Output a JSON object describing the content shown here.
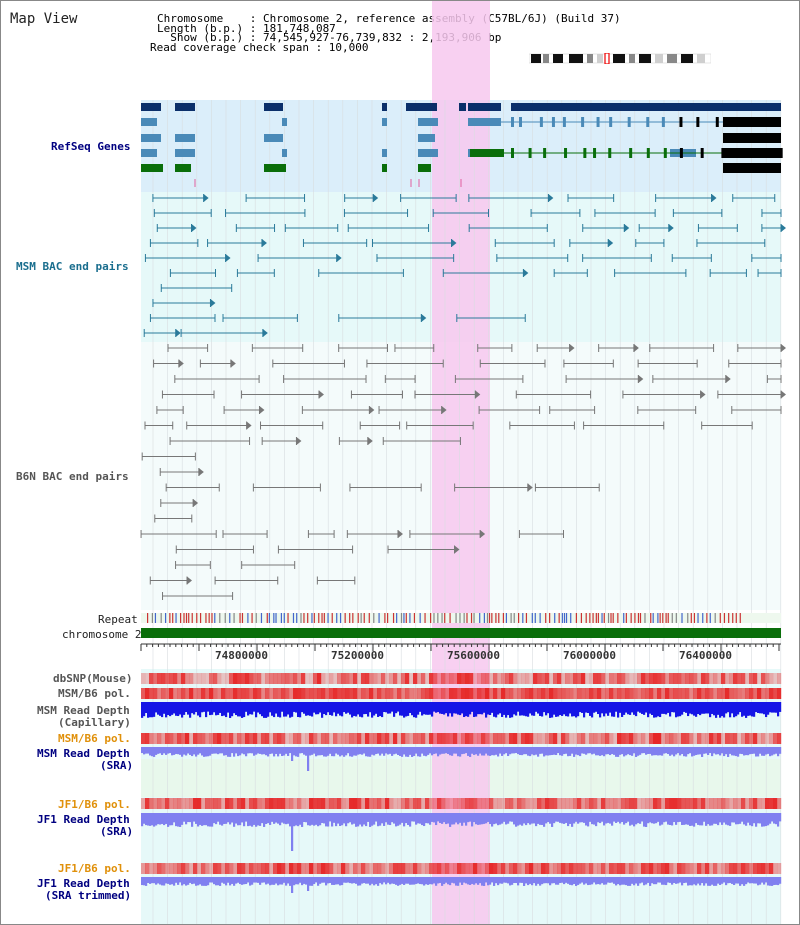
{
  "header": {
    "title": "Map View",
    "info_lines": [
      "Chromosome    : Chromosome 2, reference assembly (C57BL/6J) (Build 37)",
      "Length (b.p.) : 181,748,087",
      "  Show (b.p.) : 74,545,927-76,739,832 : 2,193,906 bp",
      "Read coverage check span : 10,000"
    ]
  },
  "tracks": {
    "refseq": "RefSeq Genes",
    "msm_bac": "MSM BAC end pairs",
    "b6n_bac": "B6N BAC end pairs",
    "repeat": "Repeat",
    "chromosome": "chromosome 2",
    "dbsnp": "dbSNP(Mouse)",
    "msm_b6_pol": "MSM/B6 pol.",
    "msm_depth_cap_1": "MSM Read Depth",
    "msm_depth_cap_2": "(Capillary)",
    "msm_b6_pol_2": "MSM/B6 pol.",
    "msm_depth_sra_1": "MSM Read Depth",
    "msm_depth_sra_2": "(SRA)",
    "jf1_b6_pol": "JF1/B6 pol.",
    "jf1_depth_sra_1": "JF1 Read Depth",
    "jf1_depth_sra_2": "(SRA)",
    "jf1_b6_pol_2": "JF1/B6 pol.",
    "jf1_depth_trim_1": "JF1 Read Depth",
    "jf1_depth_trim_2": "(SRA trimmed)"
  },
  "axis": {
    "ticks": [
      "74800000",
      "75200000",
      "75600000",
      "76000000",
      "76400000"
    ]
  },
  "colors": {
    "refseq_bg": "#dbeefa",
    "bac_bg": "#e6f9f9",
    "highlight": "#f7c8ef",
    "navy": "#0b2f6a",
    "steel": "#4a8ab8",
    "green": "#0a6e0a",
    "chromosome": "#0a6e0a",
    "depth_blue": "#1515e6",
    "depth_light": "#8080f0"
  }
}
